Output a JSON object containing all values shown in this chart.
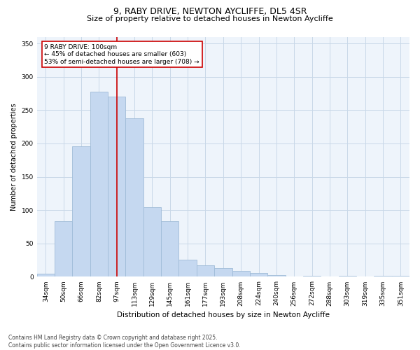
{
  "title1": "9, RABY DRIVE, NEWTON AYCLIFFE, DL5 4SR",
  "title2": "Size of property relative to detached houses in Newton Aycliffe",
  "xlabel": "Distribution of detached houses by size in Newton Aycliffe",
  "ylabel": "Number of detached properties",
  "categories": [
    "34sqm",
    "50sqm",
    "66sqm",
    "82sqm",
    "97sqm",
    "113sqm",
    "129sqm",
    "145sqm",
    "161sqm",
    "177sqm",
    "193sqm",
    "208sqm",
    "224sqm",
    "240sqm",
    "256sqm",
    "272sqm",
    "288sqm",
    "303sqm",
    "319sqm",
    "335sqm",
    "351sqm"
  ],
  "values": [
    5,
    83,
    196,
    278,
    270,
    238,
    104,
    83,
    26,
    17,
    13,
    9,
    6,
    3,
    0,
    2,
    0,
    2,
    0,
    2,
    2
  ],
  "bar_color": "#c5d8f0",
  "bar_edge_color": "#a0bcd8",
  "vline_x": 4,
  "vline_color": "#cc0000",
  "annotation_text": "9 RABY DRIVE: 100sqm\n← 45% of detached houses are smaller (603)\n53% of semi-detached houses are larger (708) →",
  "annotation_box_color": "#ffffff",
  "annotation_box_edge": "#cc0000",
  "ylim": [
    0,
    360
  ],
  "yticks": [
    0,
    50,
    100,
    150,
    200,
    250,
    300,
    350
  ],
  "grid_color": "#c8d8e8",
  "bg_color": "#eef4fb",
  "footnote": "Contains HM Land Registry data © Crown copyright and database right 2025.\nContains public sector information licensed under the Open Government Licence v3.0.",
  "title1_fontsize": 9,
  "title2_fontsize": 8,
  "tick_fontsize": 6.5,
  "ylabel_fontsize": 7,
  "xlabel_fontsize": 7.5,
  "annot_fontsize": 6.5,
  "footnote_fontsize": 5.5
}
